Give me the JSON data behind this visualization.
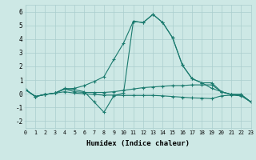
{
  "xlabel": "Humidex (Indice chaleur)",
  "x": [
    0,
    1,
    2,
    3,
    4,
    5,
    6,
    7,
    8,
    9,
    10,
    11,
    12,
    13,
    14,
    15,
    16,
    17,
    18,
    19,
    20,
    21,
    22,
    23
  ],
  "line_spike": [
    0.3,
    -0.2,
    -0.05,
    0.05,
    0.4,
    0.3,
    0.15,
    -0.6,
    -1.35,
    -0.15,
    0.05,
    5.3,
    5.2,
    5.8,
    5.2,
    4.1,
    2.1,
    1.1,
    0.8,
    0.8,
    0.15,
    -0.05,
    -0.05,
    -0.6
  ],
  "line_rise": [
    0.3,
    -0.2,
    -0.05,
    0.05,
    0.35,
    0.4,
    0.6,
    0.9,
    1.25,
    2.5,
    3.7,
    5.3,
    5.2,
    5.8,
    5.2,
    4.1,
    2.1,
    1.1,
    0.8,
    0.4,
    0.15,
    -0.05,
    -0.05,
    -0.6
  ],
  "line_high": [
    0.3,
    -0.2,
    -0.05,
    0.05,
    0.35,
    0.15,
    0.1,
    0.1,
    0.1,
    0.15,
    0.25,
    0.35,
    0.45,
    0.5,
    0.55,
    0.6,
    0.6,
    0.65,
    0.65,
    0.65,
    0.15,
    -0.05,
    -0.1,
    -0.6
  ],
  "line_low": [
    0.3,
    -0.2,
    -0.05,
    0.05,
    0.15,
    0.05,
    0.0,
    -0.05,
    -0.1,
    -0.1,
    -0.12,
    -0.12,
    -0.12,
    -0.12,
    -0.15,
    -0.2,
    -0.25,
    -0.3,
    -0.32,
    -0.35,
    -0.15,
    -0.1,
    -0.15,
    -0.6
  ],
  "line_color": "#1a7a6e",
  "bg_color": "#cde8e5",
  "grid_color": "#aacece",
  "ylim": [
    -2.5,
    6.5
  ],
  "xlim": [
    0,
    23
  ],
  "yticks": [
    -2,
    -1,
    0,
    1,
    2,
    3,
    4,
    5,
    6
  ],
  "xticks": [
    0,
    1,
    2,
    3,
    4,
    5,
    6,
    7,
    8,
    9,
    10,
    11,
    12,
    13,
    14,
    15,
    16,
    17,
    18,
    19,
    20,
    21,
    22,
    23
  ]
}
